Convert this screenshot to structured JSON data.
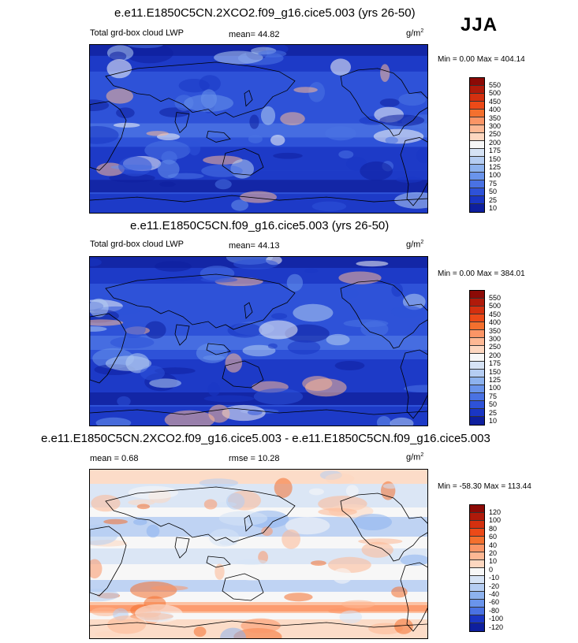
{
  "season": "JJA",
  "panels": [
    {
      "title": "e.e11.E1850C5CN.2XCO2.f09_g16.cice5.003 (yrs 26-50)",
      "left_label": "Total grd-box cloud LWP",
      "center_label": "mean=  44.82",
      "units": "g/m",
      "units_sup": "2",
      "minmax": "Min =  0.00 Max = 404.14",
      "colorbar": {
        "labels": [
          "550",
          "500",
          "450",
          "400",
          "350",
          "300",
          "250",
          "200",
          "175",
          "150",
          "125",
          "100",
          "75",
          "50",
          "25",
          "10"
        ],
        "colors": [
          "#8c0a06",
          "#b01a0a",
          "#d4300f",
          "#ec4a18",
          "#f4702e",
          "#fb9566",
          "#fdb894",
          "#fdd7c0",
          "#f7f7f7",
          "#d6e3f5",
          "#b5cdf2",
          "#8db2ee",
          "#6a94eb",
          "#4a72e3",
          "#2e52d8",
          "#1a36c4",
          "#0e1f9e"
        ]
      },
      "palette": [
        "#0e1f9e",
        "#1a36c4",
        "#2e52d8",
        "#4a72e3",
        "#6a94eb",
        "#b5cdf2",
        "#f7f7f7",
        "#fdb894"
      ]
    },
    {
      "title": "e.e11.E1850C5CN.f09_g16.cice5.003 (yrs 26-50)",
      "left_label": "Total grd-box cloud LWP",
      "center_label": "mean=  44.13",
      "units": "g/m",
      "units_sup": "2",
      "minmax": "Min =  0.00 Max = 384.01",
      "colorbar": {
        "labels": [
          "550",
          "500",
          "450",
          "400",
          "350",
          "300",
          "250",
          "200",
          "175",
          "150",
          "125",
          "100",
          "75",
          "50",
          "25",
          "10"
        ],
        "colors": [
          "#8c0a06",
          "#b01a0a",
          "#d4300f",
          "#ec4a18",
          "#f4702e",
          "#fb9566",
          "#fdb894",
          "#fdd7c0",
          "#f7f7f7",
          "#d6e3f5",
          "#b5cdf2",
          "#8db2ee",
          "#6a94eb",
          "#4a72e3",
          "#2e52d8",
          "#1a36c4",
          "#0e1f9e"
        ]
      },
      "palette": [
        "#0e1f9e",
        "#1a36c4",
        "#2e52d8",
        "#4a72e3",
        "#6a94eb",
        "#b5cdf2",
        "#f7f7f7",
        "#fdb894"
      ]
    },
    {
      "title": "e.e11.E1850C5CN.2XCO2.f09_g16.cice5.003 - e.e11.E1850C5CN.f09_g16.cice5.003",
      "left_label": "mean =   0.68",
      "center_label": "rmse =  10.28",
      "units": "g/m",
      "units_sup": "2",
      "minmax": "Min = -58.30 Max = 113.44",
      "colorbar": {
        "labels": [
          "120",
          "100",
          "80",
          "60",
          "40",
          "20",
          "10",
          "0",
          "-10",
          "-20",
          "-40",
          "-60",
          "-80",
          "-100",
          "-120"
        ],
        "colors": [
          "#8c0a06",
          "#b01a0a",
          "#d4300f",
          "#ec4a18",
          "#f4702e",
          "#fb9566",
          "#fdb894",
          "#fdd7c0",
          "#f7f7f7",
          "#d6e3f5",
          "#b5cdf2",
          "#8db2ee",
          "#6a94eb",
          "#4a72e3",
          "#1a36c4",
          "#0e1f9e"
        ]
      },
      "palette": [
        "#8db2ee",
        "#b5cdf2",
        "#d6e3f5",
        "#f7f7f7",
        "#fdd7c0",
        "#fdb894",
        "#fb9566",
        "#f4702e"
      ]
    }
  ]
}
